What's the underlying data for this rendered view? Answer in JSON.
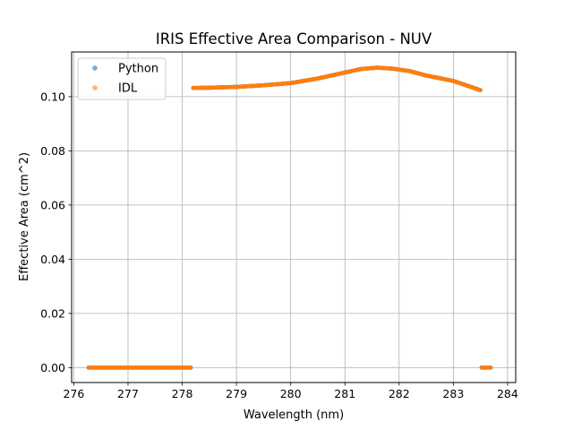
{
  "chart_data": {
    "type": "scatter",
    "title": "IRIS Effective Area Comparison - NUV",
    "xlabel": "Wavelength (nm)",
    "ylabel": "Effective Area (cm^2)",
    "xlim": [
      275.96,
      284.15
    ],
    "ylim": [
      -0.0055,
      0.1165
    ],
    "xticks": [
      276,
      277,
      278,
      279,
      280,
      281,
      282,
      283,
      284
    ],
    "yticks": [
      0.0,
      0.02,
      0.04,
      0.06,
      0.08,
      0.1
    ],
    "ytick_labels": [
      "0.00",
      "0.02",
      "0.04",
      "0.06",
      "0.08",
      "0.10"
    ],
    "grid": true,
    "legend_position": "upper-left",
    "zero_ranges": [
      [
        276.27,
        278.16
      ],
      [
        283.52,
        283.69
      ]
    ],
    "curve_x": [
      278.2,
      278.5,
      279.0,
      279.5,
      280.0,
      280.5,
      281.0,
      281.3,
      281.6,
      281.9,
      282.2,
      282.5,
      283.0,
      283.5
    ],
    "curve_y": [
      0.1032,
      0.1033,
      0.1036,
      0.1042,
      0.105,
      0.1067,
      0.1089,
      0.1102,
      0.1107,
      0.1103,
      0.1094,
      0.1078,
      0.1058,
      0.1024
    ],
    "series": [
      {
        "name": "Python",
        "color": "#1f77b4"
      },
      {
        "name": "IDL",
        "color": "#ff7f0e"
      }
    ]
  }
}
